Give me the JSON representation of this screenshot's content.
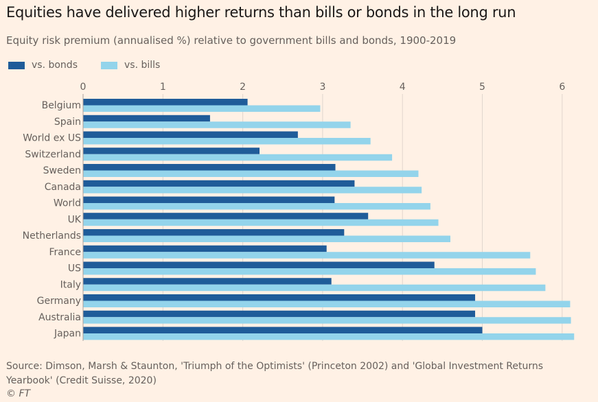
{
  "chart_data": {
    "type": "bar",
    "orientation": "horizontal",
    "title": "Equities have delivered higher returns than bills or bonds in the long run",
    "subtitle": "Equity risk premium (annualised %) relative to government bills and bonds, 1900-2019",
    "categories": [
      "Belgium",
      "Spain",
      "World ex US",
      "Switzerland",
      "Sweden",
      "Canada",
      "World",
      "UK",
      "Netherlands",
      "France",
      "US",
      "Italy",
      "Germany",
      "Australia",
      "Japan"
    ],
    "series": [
      {
        "name": "vs. bonds",
        "color": "#1f5c99",
        "values": [
          2.06,
          1.59,
          2.69,
          2.21,
          3.16,
          3.4,
          3.15,
          3.57,
          3.27,
          3.05,
          4.4,
          3.11,
          4.91,
          4.91,
          5.0
        ]
      },
      {
        "name": "vs. bills",
        "color": "#93d4eb",
        "values": [
          2.97,
          3.35,
          3.6,
          3.87,
          4.2,
          4.24,
          4.35,
          4.45,
          4.6,
          5.6,
          5.67,
          5.79,
          6.1,
          6.11,
          6.15
        ]
      }
    ],
    "xlim": [
      0,
      6.2
    ],
    "xticks": [
      "0",
      "1",
      "2",
      "3",
      "4",
      "5",
      "6"
    ],
    "grid": true,
    "legend_position": "top-left"
  },
  "source": "Source: Dimson, Marsh & Staunton, 'Triumph of the Optimists' (Princeton 2002) and 'Global Investment Returns Yearbook' (Credit Suisse, 2020)",
  "credit": "© FT"
}
